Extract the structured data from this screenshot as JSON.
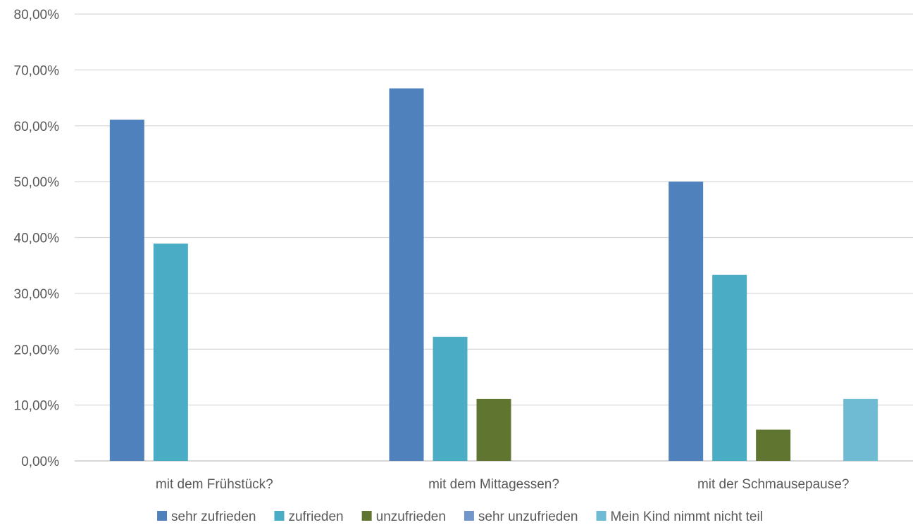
{
  "chart_data": {
    "type": "bar",
    "title": "",
    "xlabel": "",
    "ylabel": "",
    "ylim": [
      0,
      80
    ],
    "y_ticks": [
      "0,00%",
      "10,00%",
      "20,00%",
      "30,00%",
      "40,00%",
      "50,00%",
      "60,00%",
      "70,00%",
      "80,00%"
    ],
    "y_tick_values": [
      0,
      10,
      20,
      30,
      40,
      50,
      60,
      70,
      80
    ],
    "grid": true,
    "legend_position": "bottom",
    "categories": [
      "mit dem Frühstück?",
      "mit dem Mittagessen?",
      "mit der Schmausepause?"
    ],
    "series": [
      {
        "name": "sehr zufrieden",
        "color": "#4F81BD",
        "values": [
          61.1,
          66.7,
          50.0
        ]
      },
      {
        "name": "zufrieden",
        "color": "#4BACC6",
        "values": [
          38.9,
          22.2,
          33.3
        ]
      },
      {
        "name": "unzufrieden",
        "color": "#5F7530",
        "values": [
          0,
          11.1,
          5.6
        ]
      },
      {
        "name": "sehr unzufrieden",
        "color": "#7196CC",
        "values": [
          0,
          0,
          0
        ]
      },
      {
        "name": "Mein Kind nimmt nicht teil",
        "color": "#6FBBD3",
        "values": [
          0,
          0,
          11.1
        ]
      }
    ]
  }
}
